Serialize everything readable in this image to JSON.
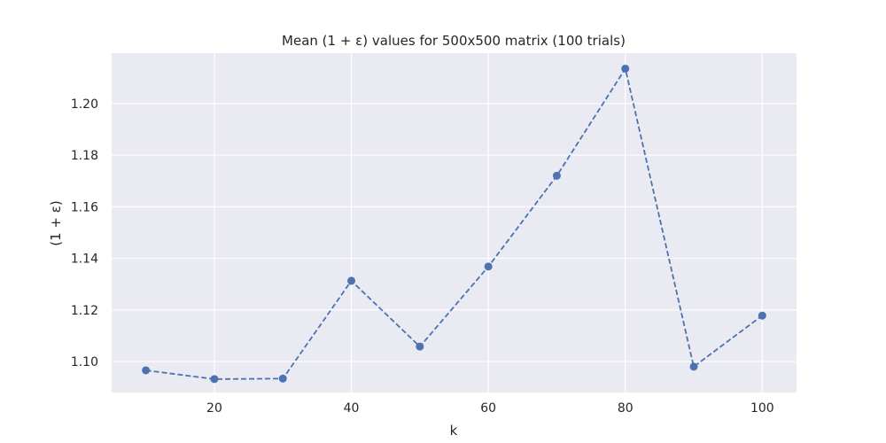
{
  "chart_data": {
    "type": "line",
    "title": "Mean (1 + ε) values for 500x500 matrix (100 trials)",
    "xlabel": "k",
    "ylabel": "(1 + ε)",
    "x": [
      10,
      20,
      30,
      40,
      50,
      60,
      70,
      80,
      90,
      100
    ],
    "series": [
      {
        "values": [
          1.0966,
          1.0932,
          1.0934,
          1.1313,
          1.1058,
          1.1368,
          1.172,
          1.2135,
          1.098,
          1.1178
        ]
      }
    ],
    "xlim": [
      5,
      105
    ],
    "ylim": [
      1.088,
      1.2195
    ],
    "xticks": [
      "20",
      "40",
      "60",
      "80",
      "100"
    ],
    "yticks": [
      "1.10",
      "1.12",
      "1.14",
      "1.16",
      "1.18",
      "1.20"
    ],
    "line_style": "dashed",
    "marker": "circle",
    "grid": true,
    "colors": {
      "series": "#4c72b0",
      "plot_background": "#eaeaf2",
      "grid": "#ffffff",
      "text": "#262626"
    }
  }
}
